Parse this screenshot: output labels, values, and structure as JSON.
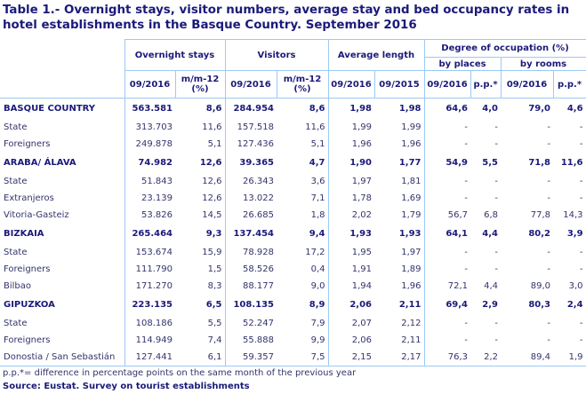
{
  "title": "Table 1.- Overnight stays, visitor numbers, average stay and bed occupancy rates in hotel establishments in the Basque Country. September 2016",
  "headers": {
    "overnight": "Overnight stays",
    "visitors": "Visitors",
    "avg": "Average length",
    "occupation": "Degree of occupation (%)",
    "places": "by places",
    "rooms": "by rooms",
    "c1": "09/2016",
    "c2": "m/m-12 (%)",
    "c3": "09/2016",
    "c4": "m/m-12 (%)",
    "c5": "09/2016",
    "c6": "09/2015",
    "c7": "09/2016",
    "c8": "p.p.*",
    "c9": "09/2016",
    "c10": "p.p.*"
  },
  "rows": [
    {
      "bold": true,
      "cells": [
        "BASQUE COUNTRY",
        "563.581",
        "8,6",
        "284.954",
        "8,6",
        "1,98",
        "1,98",
        "64,6",
        "4,0",
        "79,0",
        "4,6"
      ]
    },
    {
      "bold": false,
      "cells": [
        "State",
        "313.703",
        "11,6",
        "157.518",
        "11,6",
        "1,99",
        "1,99",
        "-",
        "-",
        "-",
        "-"
      ]
    },
    {
      "bold": false,
      "cells": [
        "Foreigners",
        "249.878",
        "5,1",
        "127.436",
        "5,1",
        "1,96",
        "1,96",
        "-",
        "-",
        "-",
        "-"
      ]
    },
    {
      "bold": true,
      "cells": [
        "ARABA/ ÁLAVA",
        "74.982",
        "12,6",
        "39.365",
        "4,7",
        "1,90",
        "1,77",
        "54,9",
        "5,5",
        "71,8",
        "11,6"
      ]
    },
    {
      "bold": false,
      "cells": [
        "State",
        "51.843",
        "12,6",
        "26.343",
        "3,6",
        "1,97",
        "1,81",
        "-",
        "-",
        "-",
        "-"
      ]
    },
    {
      "bold": false,
      "cells": [
        "Extranjeros",
        "23.139",
        "12,6",
        "13.022",
        "7,1",
        "1,78",
        "1,69",
        "-",
        "-",
        "-",
        "-"
      ]
    },
    {
      "bold": false,
      "cells": [
        "Vitoria-Gasteiz",
        "53.826",
        "14,5",
        "26.685",
        "1,8",
        "2,02",
        "1,79",
        "56,7",
        "6,8",
        "77,8",
        "14,3"
      ]
    },
    {
      "bold": true,
      "cells": [
        "BIZKAIA",
        "265.464",
        "9,3",
        "137.454",
        "9,4",
        "1,93",
        "1,93",
        "64,1",
        "4,4",
        "80,2",
        "3,9"
      ]
    },
    {
      "bold": false,
      "cells": [
        "State",
        "153.674",
        "15,9",
        "78.928",
        "17,2",
        "1,95",
        "1,97",
        "-",
        "-",
        "-",
        "-"
      ]
    },
    {
      "bold": false,
      "cells": [
        "Foreigners",
        "111.790",
        "1,5",
        "58.526",
        "0,4",
        "1,91",
        "1,89",
        "-",
        "-",
        "-",
        "-"
      ]
    },
    {
      "bold": false,
      "cells": [
        "Bilbao",
        "171.270",
        "8,3",
        "88.177",
        "9,0",
        "1,94",
        "1,96",
        "72,1",
        "4,4",
        "89,0",
        "3,0"
      ]
    },
    {
      "bold": true,
      "cells": [
        "GIPUZKOA",
        "223.135",
        "6,5",
        "108.135",
        "8,9",
        "2,06",
        "2,11",
        "69,4",
        "2,9",
        "80,3",
        "2,4"
      ]
    },
    {
      "bold": false,
      "cells": [
        "State",
        "108.186",
        "5,5",
        "52.247",
        "7,9",
        "2,07",
        "2,12",
        "-",
        "-",
        "-",
        "-"
      ]
    },
    {
      "bold": false,
      "cells": [
        "Foreigners",
        "114.949",
        "7,4",
        "55.888",
        "9,9",
        "2,06",
        "2,11",
        "-",
        "-",
        "-",
        "-"
      ]
    },
    {
      "bold": false,
      "cells": [
        "Donostia / San Sebastián",
        "127.441",
        "6,1",
        "59.357",
        "7,5",
        "2,15",
        "2,17",
        "76,3",
        "2,2",
        "89,4",
        "1,9"
      ]
    }
  ],
  "footnote": "p.p.*= difference in percentage points on the same month of the previous year",
  "source": "Source: Eustat. Survey on tourist establishments"
}
